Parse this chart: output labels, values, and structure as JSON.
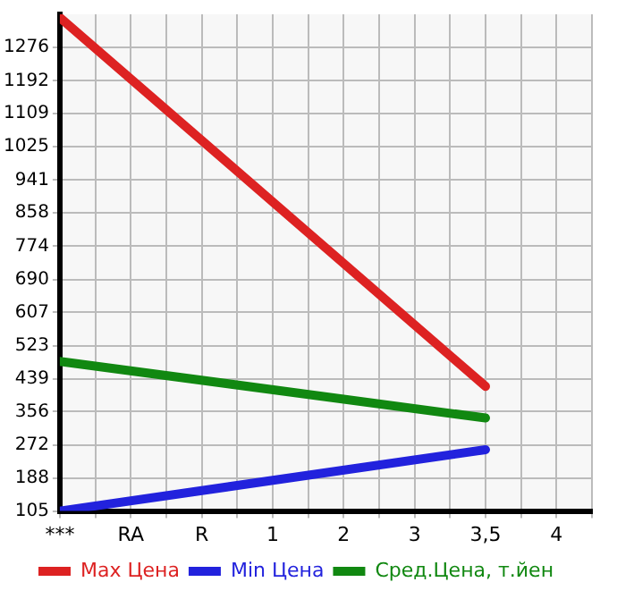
{
  "chart_data": {
    "type": "line",
    "categories": [
      "***",
      "RA",
      "R",
      "1",
      "2",
      "3",
      "3,5",
      "4"
    ],
    "series": [
      {
        "name": "Max Цена",
        "color": "#dd2222",
        "values": [
          1352,
          null,
          null,
          null,
          null,
          null,
          420,
          null
        ]
      },
      {
        "name": "Min Цена",
        "color": "#2222dd",
        "values": [
          105,
          null,
          null,
          null,
          null,
          null,
          260,
          null
        ]
      },
      {
        "name": "Сред.Цена, т.йен",
        "color": "#118811",
        "values": [
          483,
          null,
          null,
          null,
          null,
          null,
          340,
          null
        ]
      }
    ],
    "ylim": [
      105,
      1360
    ],
    "yticks": [
      105,
      188,
      272,
      356,
      439,
      523,
      607,
      690,
      774,
      858,
      941,
      1025,
      1109,
      1192,
      1276
    ],
    "grid": true,
    "legend": "bottom",
    "marker": "none",
    "line_style": "solid"
  }
}
